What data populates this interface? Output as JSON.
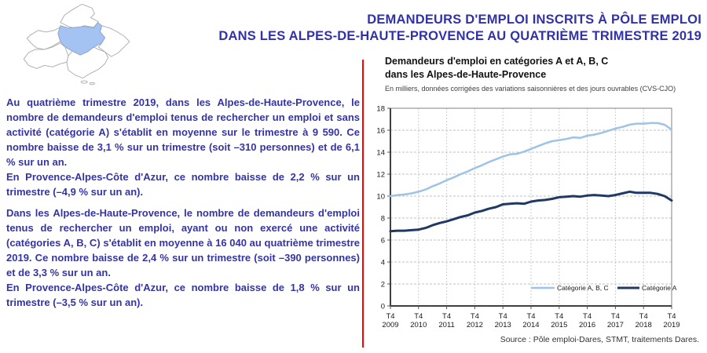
{
  "colors": {
    "title_blue": "#3232A8",
    "body_blue": "#3434A6",
    "red_divider": "#FF0000",
    "map_highlight": "#A4C2F2"
  },
  "title": {
    "line1": "DEMANDEURS D'EMPLOI INSCRITS À PÔLE EMPLOI",
    "line2": "DANS LES ALPES-DE-HAUTE-PROVENCE AU QUATRIÈME TRIMESTRE 2019"
  },
  "map": {
    "highlighted_department": "Alpes-de-Haute-Provence"
  },
  "body": {
    "paragraph1": {
      "part1": "Au quatrième trimestre 2019, dans les Alpes-de-Haute-Provence, le nombre de demandeurs d'emploi tenus de rechercher un emploi et sans activité (catégorie A) s'établit en moyenne sur le trimestre à 9 590. Ce nombre baisse de 3,1 % sur un trimestre (soit –310 personnes) et de 6,1 % sur un an.",
      "part2": "En Provence-Alpes-Côte d'Azur, ce nombre baisse de 2,2 % sur un trimestre  (–4,9 % sur un an)."
    },
    "paragraph2": {
      "part1": "Dans les Alpes-de-Haute-Provence, le nombre de demandeurs d'emploi tenus de rechercher un emploi, ayant ou non exercé une activité (catégories  A, B, C)  s'établit  en  moyenne  à 16 040  au quatrième trimestre 2019. Ce nombre baisse de 2,4 % sur un trimestre (soit –390 personnes) et de 3,3 % sur un an.",
      "part2": "En Provence-Alpes-Côte d'Azur, ce nombre baisse de 1,8 % sur un trimestre  (–3,5 % sur un an)."
    }
  },
  "chart": {
    "title_line1": "Demandeurs d'emploi en catégories A et A, B, C",
    "title_line2": "dans les Alpes-de-Haute-Provence",
    "subtitle": "En milliers, données corrigées des variations saisonnières et des jours ouvrables (CVS-CJO)",
    "source": "Source : Pôle emploi-Dares, STMT, traitements Dares."
  },
  "chart_data": {
    "type": "line",
    "x_tick_prefix": "T4",
    "x_year_ticks": [
      "2009",
      "2010",
      "2011",
      "2012",
      "2013",
      "2014",
      "2015",
      "2016",
      "2017",
      "2018",
      "2019"
    ],
    "ylim": [
      0,
      18
    ],
    "ytick_step": 2,
    "grid": true,
    "legend_position": "inside-bottom-right",
    "series": [
      {
        "name": "Catégorie A, B, C",
        "color": "#9DC3E6",
        "width": 2.5,
        "values": [
          10.0,
          10.1,
          10.15,
          10.25,
          10.4,
          10.6,
          10.9,
          11.15,
          11.45,
          11.7,
          12.0,
          12.25,
          12.55,
          12.8,
          13.1,
          13.35,
          13.6,
          13.8,
          13.85,
          14.05,
          14.3,
          14.55,
          14.8,
          15.0,
          15.1,
          15.2,
          15.35,
          15.3,
          15.5,
          15.6,
          15.75,
          15.95,
          16.15,
          16.3,
          16.5,
          16.6,
          16.6,
          16.65,
          16.65,
          16.5,
          16.05
        ]
      },
      {
        "name": "Catégorie A",
        "color": "#1F3864",
        "width": 3,
        "values": [
          6.8,
          6.85,
          6.85,
          6.9,
          6.95,
          7.1,
          7.35,
          7.55,
          7.7,
          7.9,
          8.1,
          8.25,
          8.5,
          8.65,
          8.85,
          9.0,
          9.25,
          9.3,
          9.35,
          9.3,
          9.5,
          9.6,
          9.65,
          9.75,
          9.9,
          9.95,
          10.0,
          9.95,
          10.05,
          10.1,
          10.05,
          10.0,
          10.1,
          10.25,
          10.4,
          10.3,
          10.3,
          10.3,
          10.2,
          10.0,
          9.6
        ]
      }
    ]
  }
}
